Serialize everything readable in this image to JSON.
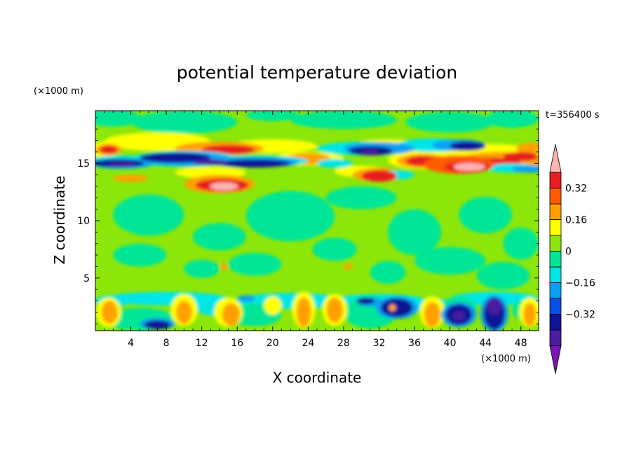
{
  "chart_data": {
    "type": "heatmap",
    "title": "potential temperature deviation",
    "time_label": "t=356400 s",
    "xlabel": "X coordinate",
    "ylabel": "Z coordinate",
    "x_unit": "(×1000 m)",
    "y_unit": "(×1000 m)",
    "xlim": [
      0,
      50
    ],
    "ylim": [
      0.4,
      19.6
    ],
    "x_ticks": [
      4,
      8,
      12,
      16,
      20,
      24,
      28,
      32,
      36,
      40,
      44,
      48
    ],
    "y_ticks": [
      5,
      10,
      15
    ],
    "colorbar": {
      "levels": [
        -0.48,
        -0.4,
        -0.32,
        -0.24,
        -0.16,
        -0.08,
        0,
        0.08,
        0.16,
        0.24,
        0.32,
        0.4
      ],
      "labeled_levels": [
        -0.32,
        -0.16,
        0,
        0.16,
        0.32
      ],
      "tick_labels": [
        "−0.32",
        "−0.16",
        "0",
        "0.16",
        "0.32"
      ],
      "colors": [
        "#7a14b4",
        "#4a1ca0",
        "#0f1496",
        "#0a50e6",
        "#0aa0f0",
        "#00e6e6",
        "#00e696",
        "#8ce60a",
        "#ffff00",
        "#ffa000",
        "#ff5a00",
        "#e61e1e",
        "#ffb4b4"
      ]
    },
    "features": [
      {
        "name": "upper-warm-band",
        "x": [
          0,
          50
        ],
        "z": [
          15.8,
          17.0
        ],
        "value": 0.12
      },
      {
        "name": "upper-cold-band",
        "x": [
          0,
          50
        ],
        "z": [
          14.6,
          15.6
        ],
        "value": -0.35
      },
      {
        "name": "warm-lens-1",
        "x": [
          10,
          18
        ],
        "z": [
          12.8,
          14.0
        ],
        "value": 0.42
      },
      {
        "name": "warm-lens-2",
        "x": [
          38,
          44
        ],
        "z": [
          14.0,
          15.2
        ],
        "value": 0.42
      },
      {
        "name": "boundary-layer-cells",
        "x": [
          0,
          50
        ],
        "z": [
          0.4,
          3.5
        ],
        "value_range": [
          -0.4,
          0.2
        ]
      }
    ]
  }
}
